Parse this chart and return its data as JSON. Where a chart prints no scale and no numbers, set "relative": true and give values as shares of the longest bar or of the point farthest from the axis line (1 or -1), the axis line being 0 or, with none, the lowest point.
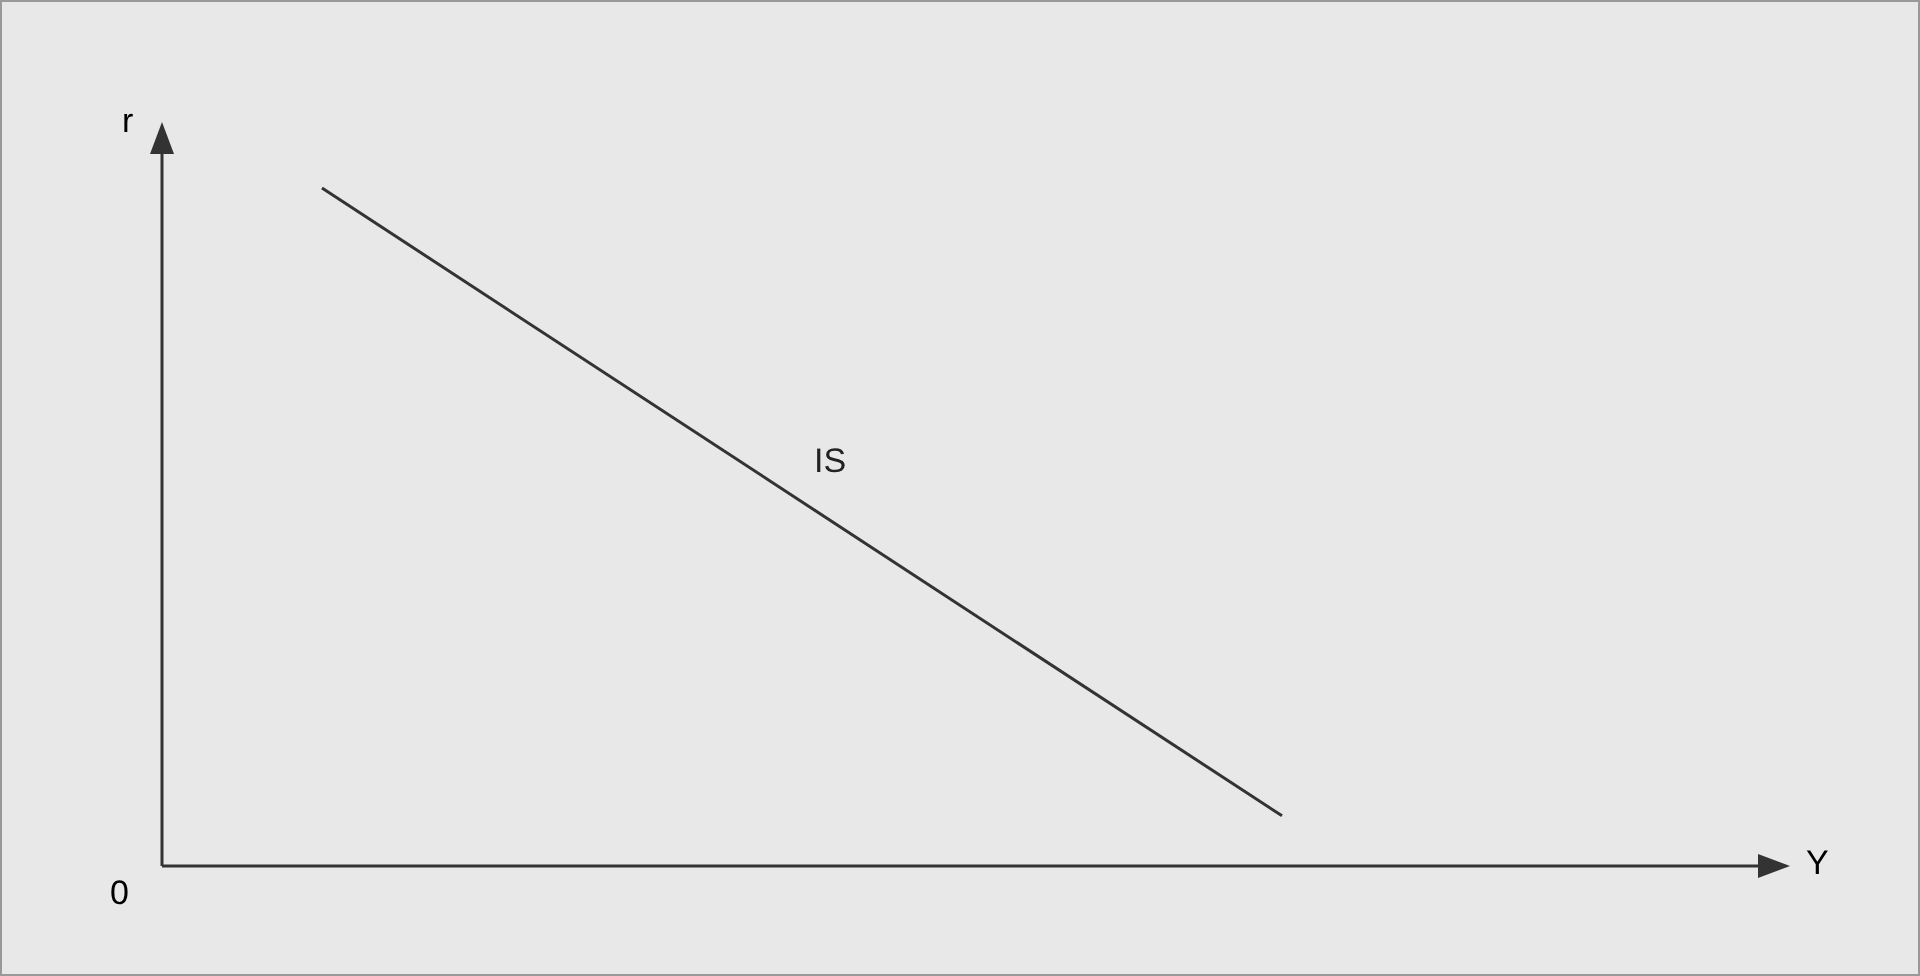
{
  "chart_data": {
    "type": "line",
    "relative": true,
    "xlabel": "Y",
    "ylabel": "r",
    "annotations": [
      "0"
    ],
    "categories": [
      null,
      null,
      null,
      null,
      null,
      null,
      null,
      null,
      null,
      null,
      null
    ],
    "series": [
      {
        "name": "IS",
        "color": "#333333",
        "values": [
          null,
          1,
          null,
          null,
          null,
          null,
          null,
          0.074,
          null,
          null,
          null
        ]
      }
    ],
    "marker": "none",
    "line_style": "solid"
  }
}
